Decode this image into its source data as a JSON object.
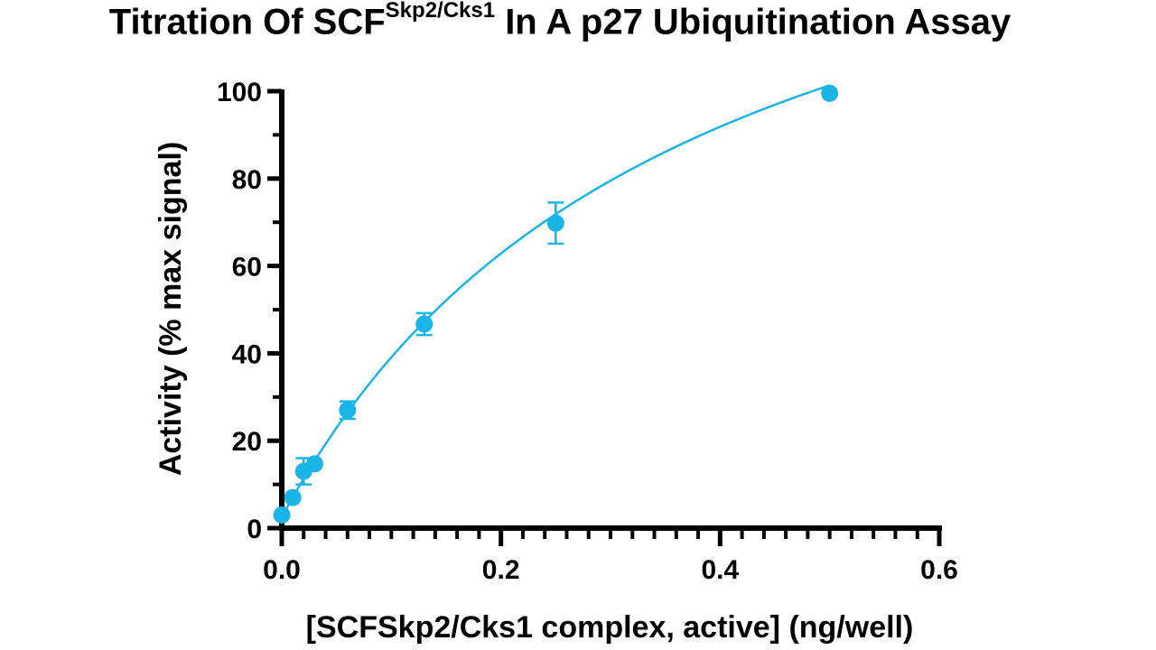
{
  "chart_data": {
    "type": "scatter",
    "title": {
      "main": "Titration Of SCF",
      "superscript": "Skp2/Cks1",
      "rest": " In A p27 Ubiquitination Assay"
    },
    "xlabel": "[SCFSkp2/Cks1 complex, active] (ng/well)",
    "ylabel": "Activity (% max signal)",
    "xlim": [
      0,
      0.6
    ],
    "ylim": [
      0,
      100
    ],
    "x_ticks": [
      "0.0",
      "0.2",
      "0.4",
      "0.6"
    ],
    "y_ticks": [
      "0",
      "20",
      "40",
      "60",
      "80",
      "100"
    ],
    "grid": false,
    "series_color": "#1ab4e6",
    "fit_curve": true,
    "points": [
      {
        "x": 0.0,
        "y": 3.0,
        "err": 0
      },
      {
        "x": 0.01,
        "y": 7.0,
        "err": 0
      },
      {
        "x": 0.02,
        "y": 13.0,
        "err": 3.0
      },
      {
        "x": 0.03,
        "y": 14.7,
        "err": 0
      },
      {
        "x": 0.06,
        "y": 27.0,
        "err": 2.0
      },
      {
        "x": 0.13,
        "y": 46.7,
        "err": 2.5
      },
      {
        "x": 0.25,
        "y": 69.8,
        "err": 4.7
      },
      {
        "x": 0.5,
        "y": 99.5,
        "err": 0
      }
    ]
  }
}
